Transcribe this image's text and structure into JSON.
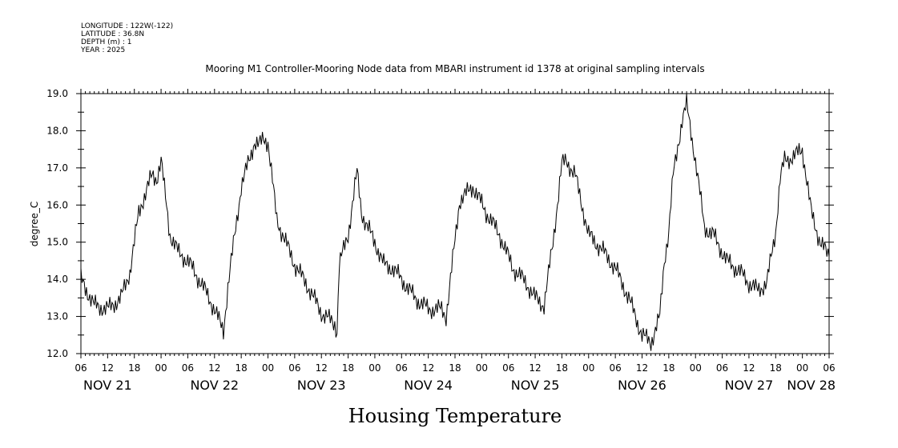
{
  "header": {
    "longitude": "LONGITUDE : 122W(-122)",
    "latitude": "LATITUDE : 36.8N",
    "depth": "DEPTH (m) : 1",
    "year": "YEAR : 2025"
  },
  "chart_data": {
    "type": "line",
    "title": "Mooring M1 Controller-Mooring Node data from MBARI instrument id 1378 at original sampling intervals",
    "bottom_title": "Housing Temperature",
    "ylabel": "degree_C",
    "ylim": [
      12.0,
      19.0
    ],
    "yticks": [
      "12.0",
      "13.0",
      "14.0",
      "15.0",
      "16.0",
      "17.0",
      "18.0",
      "19.0"
    ],
    "x_unit": "hours since 2025-11-21 00:00",
    "xlim": [
      6,
      174
    ],
    "xticks": [
      "06",
      "12",
      "18",
      "00",
      "06",
      "12",
      "18",
      "00",
      "06",
      "12",
      "18",
      "00",
      "06",
      "12",
      "18",
      "00",
      "06",
      "12",
      "18",
      "00",
      "06",
      "12",
      "18",
      "00",
      "06",
      "12",
      "18",
      "00",
      "06"
    ],
    "date_labels": [
      "NOV 21",
      "NOV 22",
      "NOV 23",
      "NOV 24",
      "NOV 25",
      "NOV 26",
      "NOV 27",
      "NOV 28"
    ],
    "grid": false,
    "line_color": "#000000",
    "series": [
      {
        "x": [
          6,
          9,
          12,
          15,
          17,
          19,
          21,
          22,
          23,
          24,
          26,
          28,
          30,
          33,
          36,
          38,
          39,
          42,
          44,
          45,
          46,
          47,
          48,
          50,
          52,
          54,
          57,
          60,
          63,
          63.5,
          64,
          66,
          68,
          69,
          70,
          72,
          74,
          76,
          78,
          81,
          84,
          87,
          88,
          89,
          91,
          94,
          97,
          100,
          103,
          106,
          108,
          110,
          112,
          114,
          115,
          117,
          120,
          123,
          126,
          129,
          132,
          134,
          136,
          137,
          138,
          139,
          141,
          142,
          144,
          146,
          148,
          151,
          154,
          156,
          158,
          160,
          162,
          163,
          164,
          166,
          168,
          170,
          172,
          174
        ],
        "y": [
          14.0,
          13.3,
          13.2,
          13.5,
          14.2,
          15.8,
          16.5,
          16.8,
          16.7,
          17.2,
          15.2,
          14.7,
          14.5,
          13.9,
          13.2,
          12.6,
          13.8,
          16.5,
          17.3,
          17.7,
          17.6,
          17.8,
          17.7,
          15.6,
          15.0,
          14.4,
          13.8,
          13.1,
          12.8,
          12.6,
          14.4,
          15.2,
          16.9,
          15.8,
          15.5,
          15.0,
          14.4,
          14.3,
          14.0,
          13.5,
          13.2,
          13.2,
          13.0,
          14.0,
          16.1,
          16.5,
          15.8,
          15.2,
          14.3,
          13.9,
          13.5,
          13.3,
          15.0,
          17.1,
          17.2,
          16.8,
          15.2,
          14.8,
          14.3,
          13.5,
          12.5,
          12.3,
          13.0,
          14.5,
          15.3,
          16.8,
          18.3,
          18.7,
          17.2,
          15.4,
          15.2,
          14.5,
          14.2,
          13.9,
          13.7,
          13.9,
          15.3,
          16.7,
          17.2,
          17.3,
          17.5,
          15.8,
          15.0,
          14.6
        ]
      }
    ]
  }
}
